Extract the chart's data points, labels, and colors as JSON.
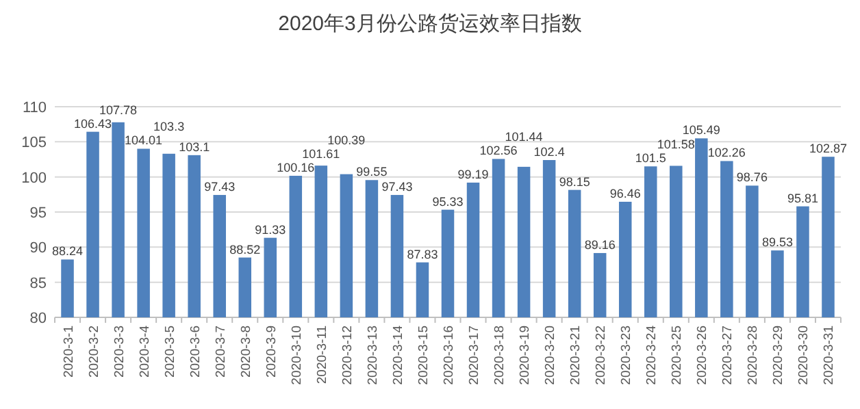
{
  "chart_data": {
    "type": "bar",
    "title": "2020年3月份公路货运效率日指数",
    "categories": [
      "2020-3-1",
      "2020-3-2",
      "2020-3-3",
      "2020-3-4",
      "2020-3-5",
      "2020-3-6",
      "2020-3-7",
      "2020-3-8",
      "2020-3-9",
      "2020-3-10",
      "2020-3-11",
      "2020-3-12",
      "2020-3-13",
      "2020-3-14",
      "2020-3-15",
      "2020-3-16",
      "2020-3-17",
      "2020-3-18",
      "2020-3-19",
      "2020-3-20",
      "2020-3-21",
      "2020-3-22",
      "2020-3-23",
      "2020-3-24",
      "2020-3-25",
      "2020-3-26",
      "2020-3-27",
      "2020-3-28",
      "2020-3-29",
      "2020-3-30",
      "2020-3-31"
    ],
    "values": [
      88.24,
      106.43,
      107.78,
      104.01,
      103.3,
      103.1,
      97.43,
      88.52,
      91.33,
      100.16,
      101.61,
      100.39,
      99.55,
      97.43,
      87.83,
      95.33,
      99.19,
      102.56,
      101.44,
      102.4,
      98.15,
      89.16,
      96.46,
      101.5,
      101.58,
      105.49,
      102.26,
      98.76,
      89.53,
      95.81,
      102.87
    ],
    "color": "#4f81bd",
    "ylim": [
      80,
      110
    ],
    "yticks": [
      80,
      85,
      90,
      95,
      100,
      105,
      110
    ],
    "grid": "y",
    "data_labels": true
  }
}
